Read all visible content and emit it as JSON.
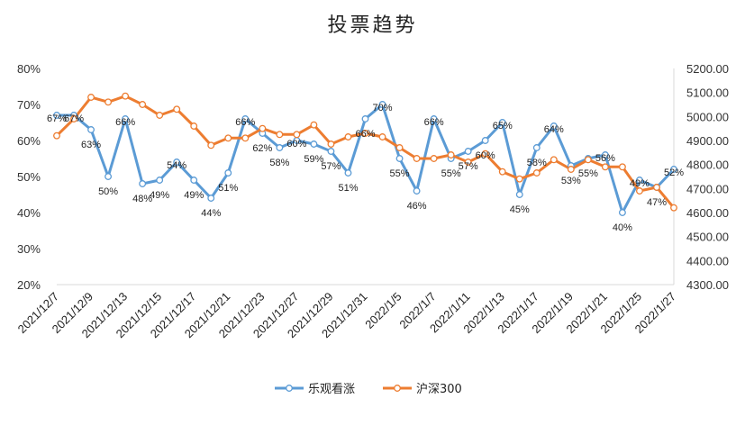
{
  "chart_data": {
    "type": "line",
    "title": "投票趋势",
    "x": [
      "2021/12/7",
      "2021/12/8",
      "2021/12/9",
      "2021/12/10",
      "2021/12/13",
      "2021/12/14",
      "2021/12/15",
      "2021/12/16",
      "2021/12/17",
      "2021/12/20",
      "2021/12/21",
      "2021/12/22",
      "2021/12/23",
      "2021/12/24",
      "2021/12/27",
      "2021/12/28",
      "2021/12/29",
      "2021/12/30",
      "2021/12/31",
      "2022/1/4",
      "2022/1/5",
      "2022/1/6",
      "2022/1/7",
      "2022/1/10",
      "2022/1/11",
      "2022/1/12",
      "2022/1/13",
      "2022/1/14",
      "2022/1/17",
      "2022/1/18",
      "2022/1/19",
      "2022/1/20",
      "2022/1/21",
      "2022/1/24",
      "2022/1/25",
      "2022/1/26",
      "2022/1/27"
    ],
    "x_tick_labels": [
      "2021/12/7",
      "2021/12/9",
      "2021/12/13",
      "2021/12/15",
      "2021/12/17",
      "2021/12/21",
      "2021/12/23",
      "2021/12/27",
      "2021/12/29",
      "2021/12/31",
      "2022/1/5",
      "2022/1/7",
      "2022/1/11",
      "2022/1/13",
      "2022/1/17",
      "2022/1/19",
      "2022/1/21",
      "2022/1/25",
      "2022/1/27"
    ],
    "y_left": {
      "min": 0.2,
      "max": 0.8,
      "ticks": [
        "20%",
        "30%",
        "40%",
        "50%",
        "60%",
        "70%",
        "80%"
      ]
    },
    "y_right": {
      "min": 4300,
      "max": 5200,
      "ticks": [
        "4300.00",
        "4400.00",
        "4500.00",
        "4600.00",
        "4700.00",
        "4800.00",
        "4900.00",
        "5000.00",
        "5100.00",
        "5200.00"
      ]
    },
    "series": [
      {
        "name": "乐观看涨",
        "axis": "left",
        "color": "#5B9BD5",
        "values": [
          0.67,
          0.67,
          0.63,
          0.5,
          0.66,
          0.48,
          0.49,
          0.54,
          0.49,
          0.44,
          0.51,
          0.66,
          0.62,
          0.58,
          0.6,
          0.59,
          0.57,
          0.51,
          0.66,
          0.7,
          0.55,
          0.46,
          0.66,
          0.55,
          0.57,
          0.6,
          0.65,
          0.45,
          0.58,
          0.64,
          0.53,
          0.55,
          0.56,
          0.4,
          0.49,
          0.47,
          0.52
        ],
        "labels": [
          "67%",
          "67%",
          "63%",
          "50%",
          "66%",
          "48%",
          "49%",
          "54%",
          "49%",
          "44%",
          "51%",
          "66%",
          "62%",
          "58%",
          "60%",
          "59%",
          "57%",
          "51%",
          "66%",
          "70%",
          "55%",
          "46%",
          "66%",
          "55%",
          "57%",
          "60%",
          "65%",
          "45%",
          "58%",
          "64%",
          "53%",
          "55%",
          "56%",
          "40%",
          "49%",
          "47%",
          "52%"
        ]
      },
      {
        "name": "沪深300",
        "axis": "right",
        "color": "#ED7D31",
        "values": [
          4920,
          4990,
          5080,
          5060,
          5085,
          5050,
          5005,
          5030,
          4960,
          4880,
          4910,
          4910,
          4950,
          4925,
          4925,
          4965,
          4885,
          4915,
          4930,
          4915,
          4870,
          4825,
          4825,
          4840,
          4810,
          4845,
          4770,
          4740,
          4765,
          4820,
          4780,
          4820,
          4790,
          4790,
          4690,
          4705,
          4620
        ]
      }
    ],
    "legend": {
      "position": "bottom",
      "entries": [
        "乐观看涨",
        "沪深300"
      ]
    }
  }
}
